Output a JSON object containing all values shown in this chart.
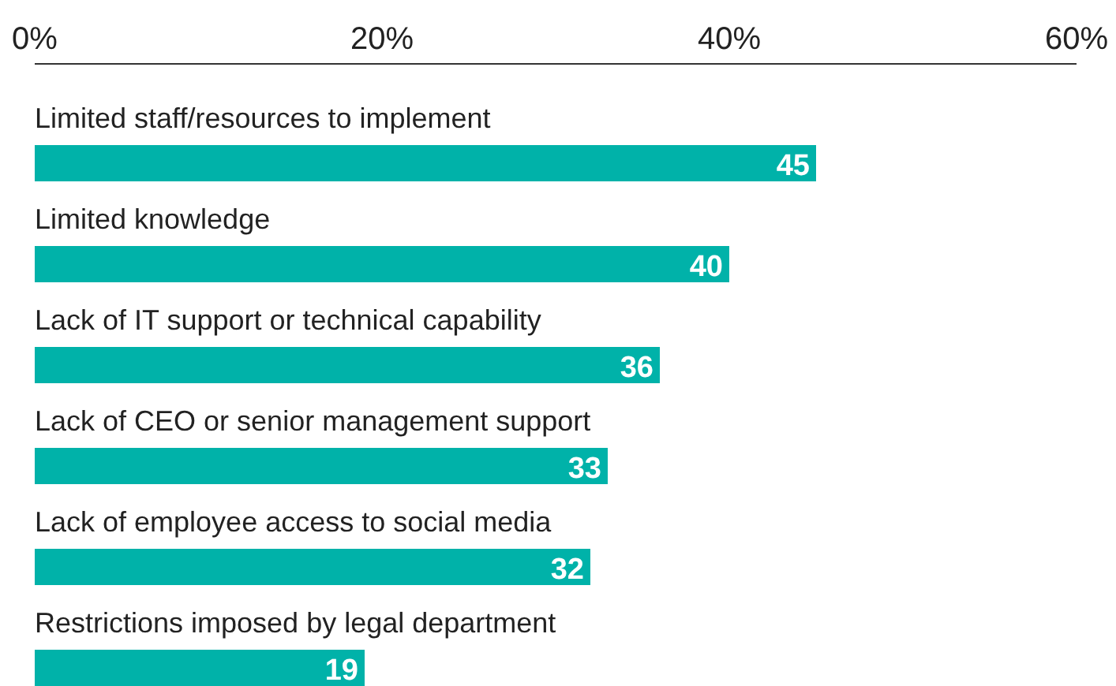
{
  "chart_data": {
    "type": "bar",
    "orientation": "horizontal",
    "categories": [
      "Limited staff/resources to implement",
      "Limited knowledge",
      "Lack of IT support or technical capability",
      "Lack of CEO or senior management support",
      "Lack of employee access to social media",
      "Restrictions imposed by legal department"
    ],
    "values": [
      45,
      40,
      36,
      33,
      32,
      19
    ],
    "color": "#00b2a9",
    "xlim": [
      0,
      60
    ],
    "xticks": [
      {
        "value": 0,
        "label": "0%"
      },
      {
        "value": 20,
        "label": "20%"
      },
      {
        "value": 40,
        "label": "40%"
      },
      {
        "value": 60,
        "label": "60%"
      }
    ],
    "data_labels": true,
    "grid": false
  }
}
